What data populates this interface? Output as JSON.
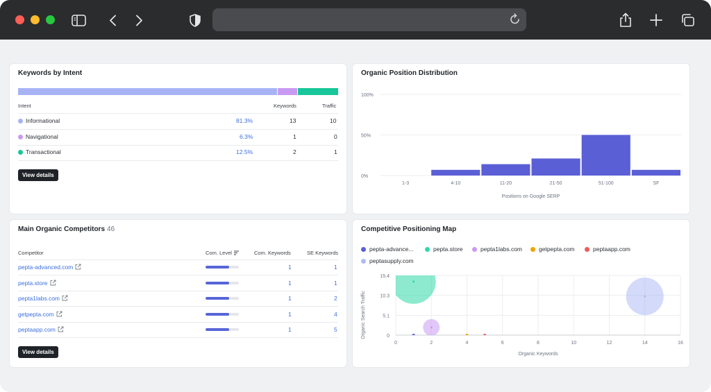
{
  "browser": {
    "colors": {
      "close": "#ff5f57",
      "minimize": "#febc2e",
      "zoom": "#28c840"
    }
  },
  "intent_card": {
    "title": "Keywords by Intent",
    "headers": {
      "intent": "Intent",
      "keywords": "Keywords",
      "traffic": "Traffic"
    },
    "rows": [
      {
        "name": "Informational",
        "pct": "81.3%",
        "keywords": "13",
        "traffic": "10",
        "color": "#a7b3f5",
        "share": 0.813
      },
      {
        "name": "Navigational",
        "pct": "6.3%",
        "keywords": "1",
        "traffic": "0",
        "color": "#c99af2",
        "share": 0.063
      },
      {
        "name": "Transactional",
        "pct": "12.5%",
        "keywords": "2",
        "traffic": "1",
        "color": "#18c799",
        "share": 0.125
      }
    ],
    "button": "View details"
  },
  "position_card": {
    "title": "Organic Position Distribution"
  },
  "competitors_card": {
    "title": "Main Organic Competitors",
    "count": "46",
    "headers": {
      "competitor": "Competitor",
      "level": "Com. Level",
      "com_keywords": "Com. Keywords",
      "se_keywords": "SE Keywords"
    },
    "rows": [
      {
        "domain": "pepta-advanced.com",
        "level": 0.7,
        "com_keywords": "1",
        "se_keywords": "1"
      },
      {
        "domain": "pepta.store",
        "level": 0.7,
        "com_keywords": "1",
        "se_keywords": "1"
      },
      {
        "domain": "pepta1labs.com",
        "level": 0.7,
        "com_keywords": "1",
        "se_keywords": "2"
      },
      {
        "domain": "getpepta.com",
        "level": 0.7,
        "com_keywords": "1",
        "se_keywords": "4"
      },
      {
        "domain": "peptaapp.com",
        "level": 0.7,
        "com_keywords": "1",
        "se_keywords": "5"
      }
    ],
    "button": "View details"
  },
  "map_card": {
    "title": "Competitive Positioning Map"
  },
  "chart_data": [
    {
      "type": "bar",
      "categories": [
        "1-3",
        "4-10",
        "11-20",
        "21-50",
        "51-100",
        "SF"
      ],
      "values": [
        0,
        7,
        14,
        21,
        50,
        7
      ],
      "xlabel": "Positions on Google SERP",
      "ylabel": "",
      "ylim": [
        0,
        100
      ],
      "yticks": [
        "100%",
        "50%",
        "0%"
      ],
      "color": "#5b5fd6",
      "grid": true
    },
    {
      "type": "scatter",
      "xlabel": "Organic Keywords",
      "ylabel": "Organic Search Traffic",
      "xlim": [
        0,
        16
      ],
      "ylim": [
        0,
        15.4
      ],
      "xticks": [
        0,
        2,
        4,
        6,
        8,
        10,
        12,
        14,
        16
      ],
      "yticks": [
        "0",
        "5.1",
        "10.3",
        "15.4"
      ],
      "legend_position": "top",
      "series": [
        {
          "name": "pepta-advance...",
          "color": "#5b5fd6",
          "x": 1,
          "y": 0,
          "size": 2
        },
        {
          "name": "pepta.store",
          "color": "#2fd9a8",
          "x": 1,
          "y": 13.8,
          "size": 32
        },
        {
          "name": "pepta1labs.com",
          "color": "#c99af2",
          "x": 2,
          "y": 2,
          "size": 12
        },
        {
          "name": "getpepta.com",
          "color": "#f5a300",
          "x": 4,
          "y": 0,
          "size": 2
        },
        {
          "name": "peptaapp.com",
          "color": "#f05a5a",
          "x": 5,
          "y": 0,
          "size": 2
        },
        {
          "name": "peptasupply.com",
          "color": "#aebcf5",
          "x": 14,
          "y": 10,
          "size": 27
        }
      ]
    }
  ]
}
